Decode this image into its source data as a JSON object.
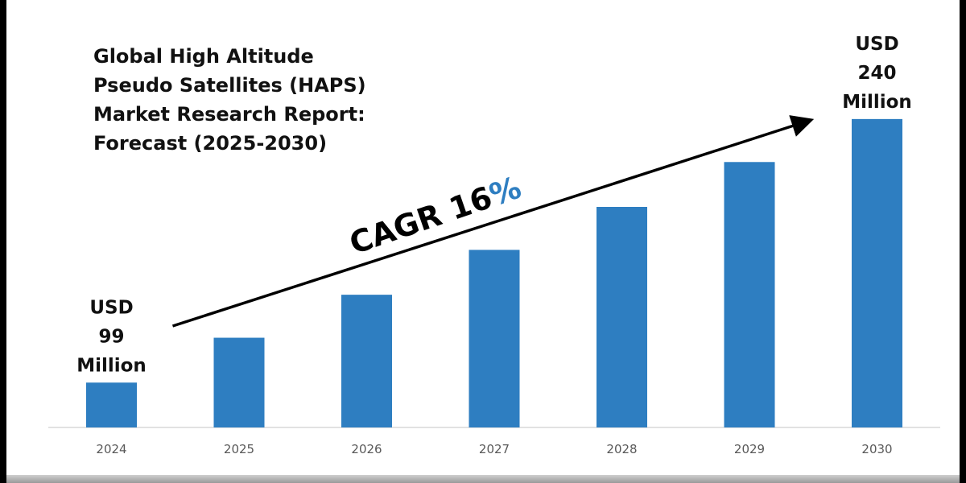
{
  "chart_data": {
    "type": "bar",
    "title": "Global High Altitude Pseudo Satellites (HAPS) Market Research Report: Forecast (2025-2030)",
    "title_lines": [
      "Global High Altitude",
      "Pseudo Satellites (HAPS)",
      "Market Research Report:",
      "Forecast (2025-2030)"
    ],
    "categories": [
      "2024",
      "2025",
      "2026",
      "2027",
      "2028",
      "2029",
      "2030"
    ],
    "values": [
      99,
      123,
      146,
      170,
      193,
      217,
      240
    ],
    "unit": "USD Million",
    "xlabel": "",
    "ylabel": "",
    "ylim": [
      75,
      252
    ],
    "grid": false,
    "bar_color": "#2e7ec1",
    "annotations": {
      "start": {
        "lines": [
          "USD",
          "99",
          "Million"
        ],
        "category": "2024"
      },
      "end": {
        "lines": [
          "USD",
          "240",
          "Million"
        ],
        "category": "2030"
      },
      "cagr": {
        "label": "CAGR 16",
        "suffix": "%",
        "suffix_color": "#2e7ec1"
      }
    },
    "trend_arrow": {
      "from_category": "2024",
      "to_category": "2030"
    }
  }
}
